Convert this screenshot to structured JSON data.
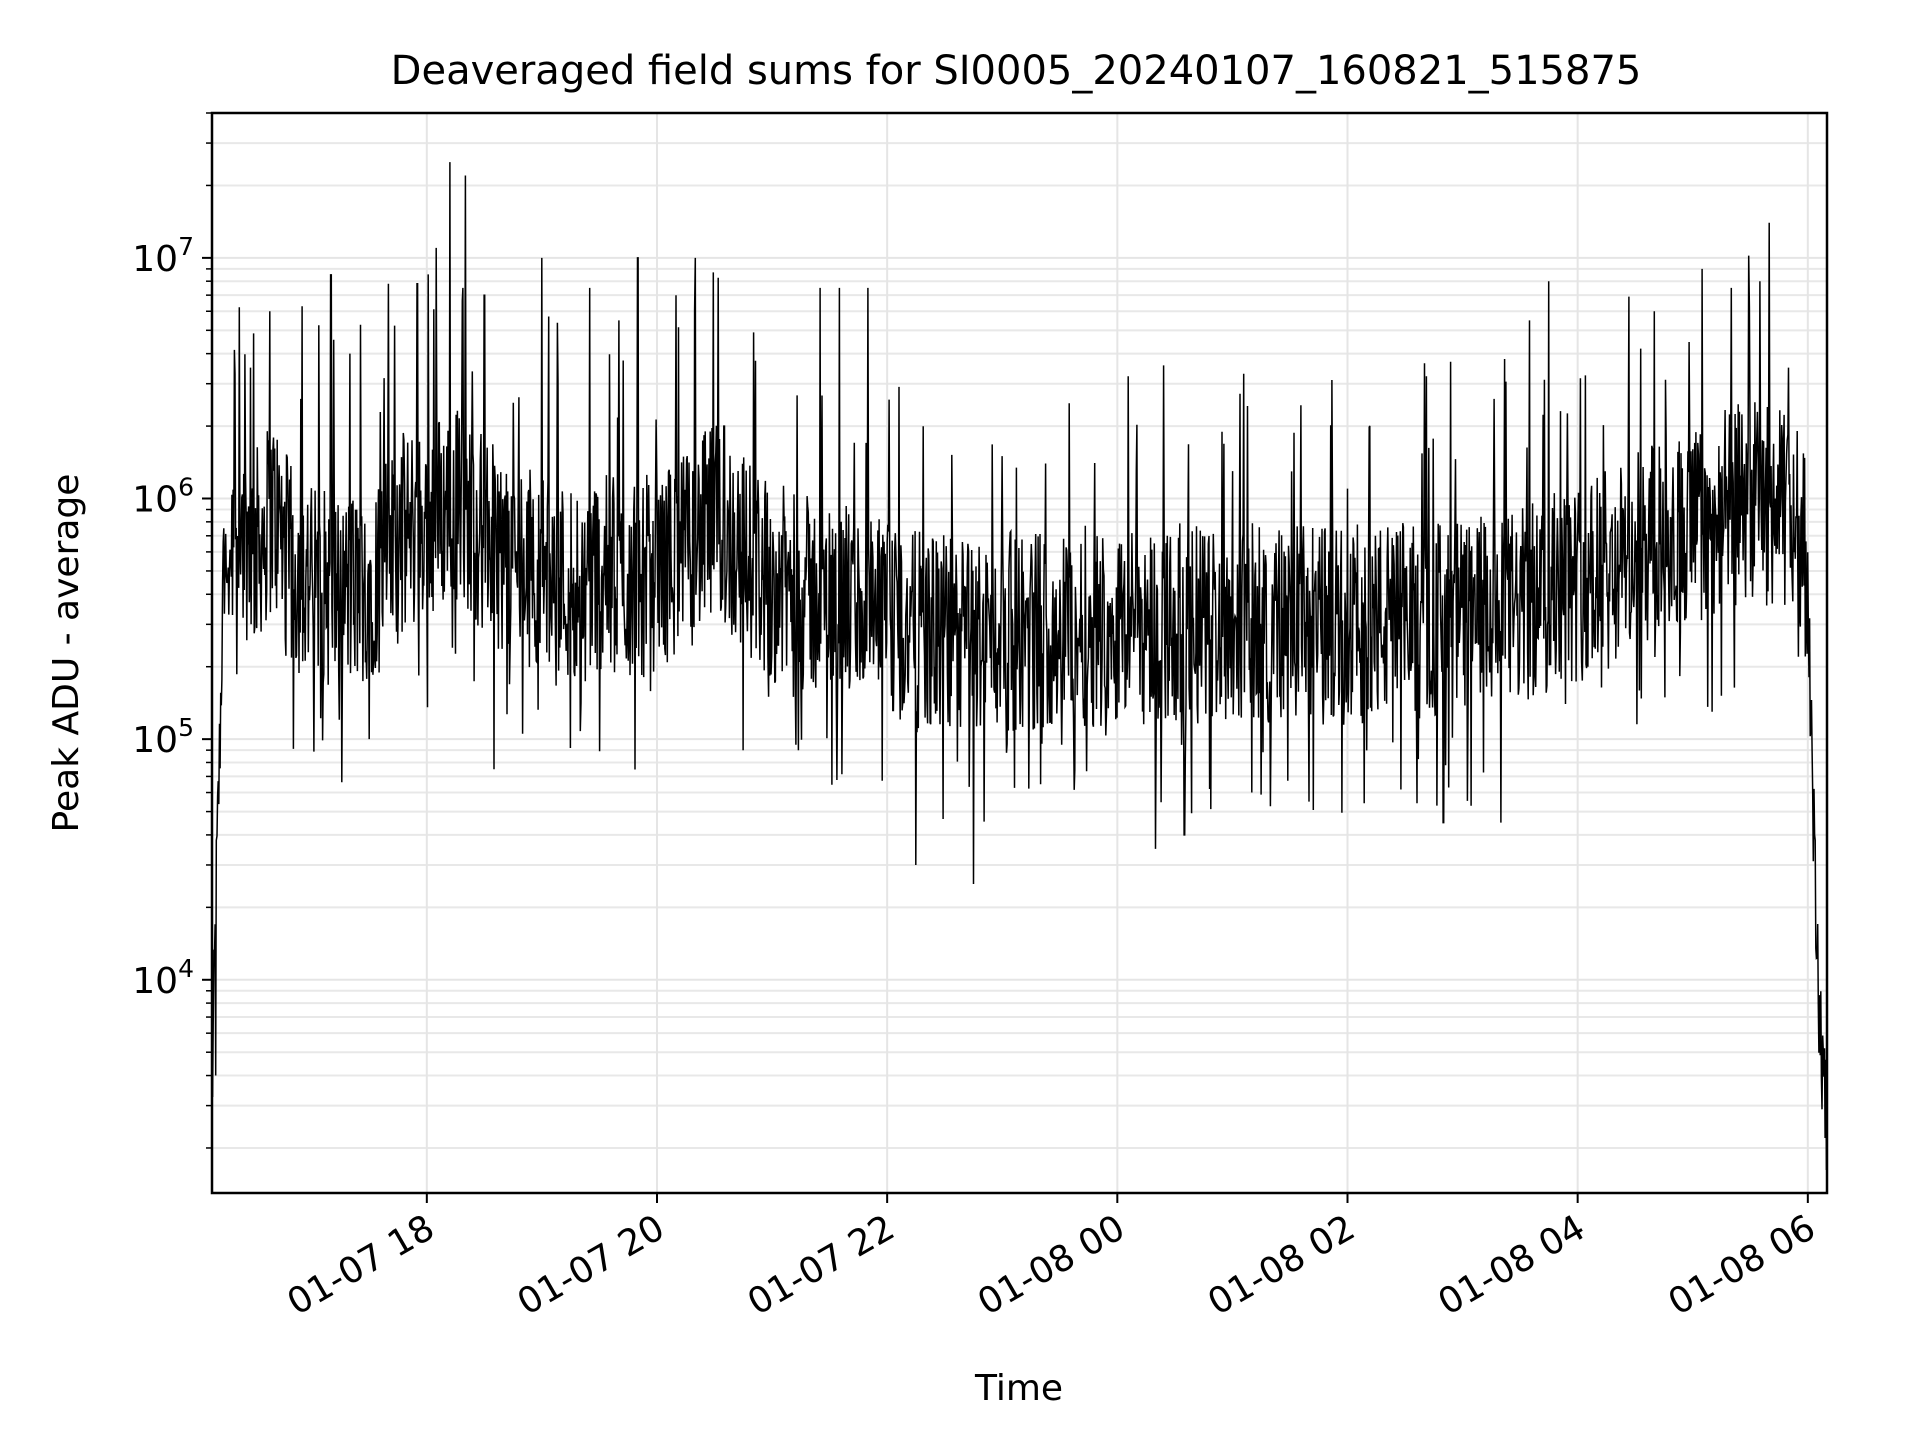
{
  "chart_data": {
    "type": "line",
    "title": "Deaveraged field sums for SI0005_20240107_160821_515875",
    "xlabel": "Time",
    "ylabel": "Peak ADU - average",
    "yscale": "log",
    "ylim": [
      1300,
      40000000
    ],
    "xlim": [
      "2024-01-07 16:08",
      "2024-01-08 06:10"
    ],
    "grid": true,
    "x_ticks": [
      {
        "label": "01-07 18",
        "time": "2024-01-07 18:00"
      },
      {
        "label": "01-07 20",
        "time": "2024-01-07 20:00"
      },
      {
        "label": "01-07 22",
        "time": "2024-01-07 22:00"
      },
      {
        "label": "01-08 00",
        "time": "2024-01-08 00:00"
      },
      {
        "label": "01-08 02",
        "time": "2024-01-08 02:00"
      },
      {
        "label": "01-08 04",
        "time": "2024-01-08 04:00"
      },
      {
        "label": "01-08 06",
        "time": "2024-01-08 06:00"
      }
    ],
    "y_ticks": [
      {
        "base": "10",
        "exp": "4",
        "value": 10000
      },
      {
        "base": "10",
        "exp": "5",
        "value": 100000
      },
      {
        "base": "10",
        "exp": "6",
        "value": 1000000
      },
      {
        "base": "10",
        "exp": "7",
        "value": 10000000
      }
    ],
    "series": [
      {
        "color": "#000000",
        "points": [
          [
            "2024-01-07 16:08",
            3000
          ],
          [
            "2024-01-07 16:10",
            20000
          ],
          [
            "2024-01-07 16:12",
            90000
          ],
          [
            "2024-01-07 16:14",
            500000
          ],
          [
            "2024-01-07 16:20",
            800000
          ],
          [
            "2024-01-07 16:30",
            600000
          ],
          [
            "2024-01-07 16:40",
            900000
          ],
          [
            "2024-01-07 16:50",
            500000
          ],
          [
            "2024-01-07 17:00",
            450000
          ],
          [
            "2024-01-07 17:15",
            400000
          ],
          [
            "2024-01-07 17:30",
            450000
          ],
          [
            "2024-01-07 17:45",
            700000
          ],
          [
            "2024-01-07 18:00",
            800000
          ],
          [
            "2024-01-07 18:15",
            1000000
          ],
          [
            "2024-01-07 18:30",
            700000
          ],
          [
            "2024-01-07 18:45",
            550000
          ],
          [
            "2024-01-07 19:00",
            500000
          ],
          [
            "2024-01-07 19:15",
            450000
          ],
          [
            "2024-01-07 19:30",
            500000
          ],
          [
            "2024-01-07 19:45",
            450000
          ],
          [
            "2024-01-07 20:00",
            500000
          ],
          [
            "2024-01-07 20:15",
            600000
          ],
          [
            "2024-01-07 20:30",
            800000
          ],
          [
            "2024-01-07 20:45",
            600000
          ],
          [
            "2024-01-07 21:00",
            450000
          ],
          [
            "2024-01-07 21:15",
            400000
          ],
          [
            "2024-01-07 21:30",
            380000
          ],
          [
            "2024-01-07 21:45",
            350000
          ],
          [
            "2024-01-07 22:00",
            300000
          ],
          [
            "2024-01-07 22:15",
            280000
          ],
          [
            "2024-01-07 22:30",
            270000
          ],
          [
            "2024-01-07 22:45",
            270000
          ],
          [
            "2024-01-07 23:00",
            280000
          ],
          [
            "2024-01-07 23:30",
            290000
          ],
          [
            "2024-01-08 00:00",
            300000
          ],
          [
            "2024-01-08 00:30",
            300000
          ],
          [
            "2024-01-08 01:00",
            310000
          ],
          [
            "2024-01-08 01:30",
            300000
          ],
          [
            "2024-01-08 02:00",
            300000
          ],
          [
            "2024-01-08 02:30",
            310000
          ],
          [
            "2024-01-08 03:00",
            320000
          ],
          [
            "2024-01-08 03:30",
            350000
          ],
          [
            "2024-01-08 03:45",
            400000
          ],
          [
            "2024-01-08 04:00",
            450000
          ],
          [
            "2024-01-08 04:15",
            500000
          ],
          [
            "2024-01-08 04:30",
            600000
          ],
          [
            "2024-01-08 04:45",
            700000
          ],
          [
            "2024-01-08 05:00",
            750000
          ],
          [
            "2024-01-08 05:15",
            900000
          ],
          [
            "2024-01-08 05:30",
            1000000
          ],
          [
            "2024-01-08 05:45",
            900000
          ],
          [
            "2024-01-08 05:55",
            800000
          ],
          [
            "2024-01-08 06:00",
            500000
          ],
          [
            "2024-01-08 06:02",
            100000
          ],
          [
            "2024-01-08 06:04",
            20000
          ],
          [
            "2024-01-08 06:06",
            8000
          ],
          [
            "2024-01-08 06:08",
            4000
          ],
          [
            "2024-01-08 06:10",
            2500
          ]
        ]
      }
    ],
    "spikes": [
      [
        "2024-01-07 16:20",
        3300000
      ],
      [
        "2024-01-07 16:28",
        3500000
      ],
      [
        "2024-01-07 16:38",
        6000000
      ],
      [
        "2024-01-07 16:55",
        6300000
      ],
      [
        "2024-01-07 17:10",
        8500000
      ],
      [
        "2024-01-07 17:20",
        4000000
      ],
      [
        "2024-01-07 17:40",
        7800000
      ],
      [
        "2024-01-07 17:55",
        7800000
      ],
      [
        "2024-01-07 18:05",
        11000000
      ],
      [
        "2024-01-07 18:12",
        25000000
      ],
      [
        "2024-01-07 18:20",
        22000000
      ],
      [
        "2024-01-07 18:30",
        7000000
      ],
      [
        "2024-01-07 18:45",
        2500000
      ],
      [
        "2024-01-07 19:00",
        10000000
      ],
      [
        "2024-01-07 19:25",
        7500000
      ],
      [
        "2024-01-07 19:40",
        5500000
      ],
      [
        "2024-01-07 19:50",
        10000000
      ],
      [
        "2024-01-07 20:10",
        7000000
      ],
      [
        "2024-01-07 20:20",
        10000000
      ],
      [
        "2024-01-07 20:35",
        2000000
      ],
      [
        "2024-01-07 21:25",
        7500000
      ],
      [
        "2024-01-07 21:35",
        7500000
      ],
      [
        "2024-01-07 21:50",
        7500000
      ],
      [
        "2024-01-07 23:00",
        1500000
      ],
      [
        "2024-01-08 00:10",
        1300000
      ],
      [
        "2024-01-08 01:00",
        1300000
      ],
      [
        "2024-01-08 02:00",
        1100000
      ],
      [
        "2024-01-08 03:35",
        5500000
      ],
      [
        "2024-01-08 03:45",
        8000000
      ],
      [
        "2024-01-08 04:40",
        6000000
      ],
      [
        "2024-01-08 05:05",
        9000000
      ],
      [
        "2024-01-08 05:10",
        8500000
      ],
      [
        "2024-01-08 05:20",
        7500000
      ],
      [
        "2024-01-08 05:35",
        8000000
      ],
      [
        "2024-01-08 05:40",
        14000000
      ],
      [
        "2024-01-08 05:50",
        3500000
      ]
    ],
    "dips": [
      [
        "2024-01-07 16:10",
        4000
      ],
      [
        "2024-01-07 17:30",
        100000
      ],
      [
        "2024-01-07 18:35",
        75000
      ],
      [
        "2024-01-07 20:45",
        90000
      ],
      [
        "2024-01-07 22:15",
        30000
      ],
      [
        "2024-01-07 22:45",
        25000
      ],
      [
        "2024-01-07 23:20",
        65000
      ],
      [
        "2024-01-08 00:20",
        35000
      ],
      [
        "2024-01-08 00:35",
        40000
      ],
      [
        "2024-01-08 01:10",
        60000
      ],
      [
        "2024-01-08 01:40",
        55000
      ],
      [
        "2024-01-08 02:50",
        45000
      ],
      [
        "2024-01-08 03:20",
        45000
      ],
      [
        "2024-01-08 05:10",
        130000
      ],
      [
        "2024-01-08 06:09",
        2200
      ]
    ]
  }
}
